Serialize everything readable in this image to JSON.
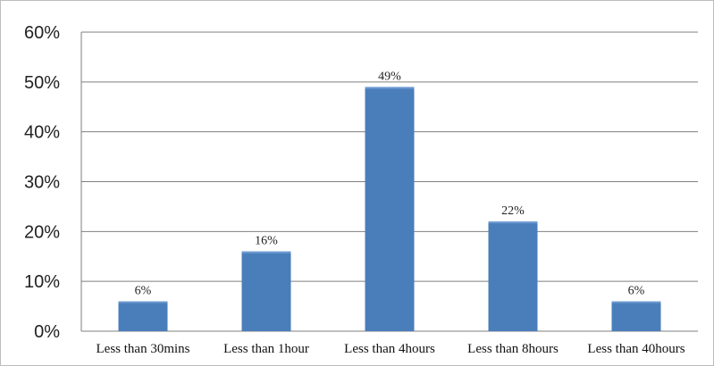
{
  "chart_data": {
    "type": "bar",
    "categories": [
      "Less than 30mins",
      "Less than 1hour",
      "Less than 4hours",
      "Less than 8hours",
      "Less than 40hours"
    ],
    "values": [
      6,
      16,
      49,
      22,
      6
    ],
    "data_labels": [
      "6%",
      "16%",
      "49%",
      "22%",
      "6%"
    ],
    "yticks": [
      "0%",
      "10%",
      "20%",
      "30%",
      "40%",
      "50%",
      "60%"
    ],
    "ylim": [
      0,
      60
    ],
    "ytick_step": 10,
    "grid": true,
    "legend": "none",
    "bar_color": "#4a7ebb"
  }
}
